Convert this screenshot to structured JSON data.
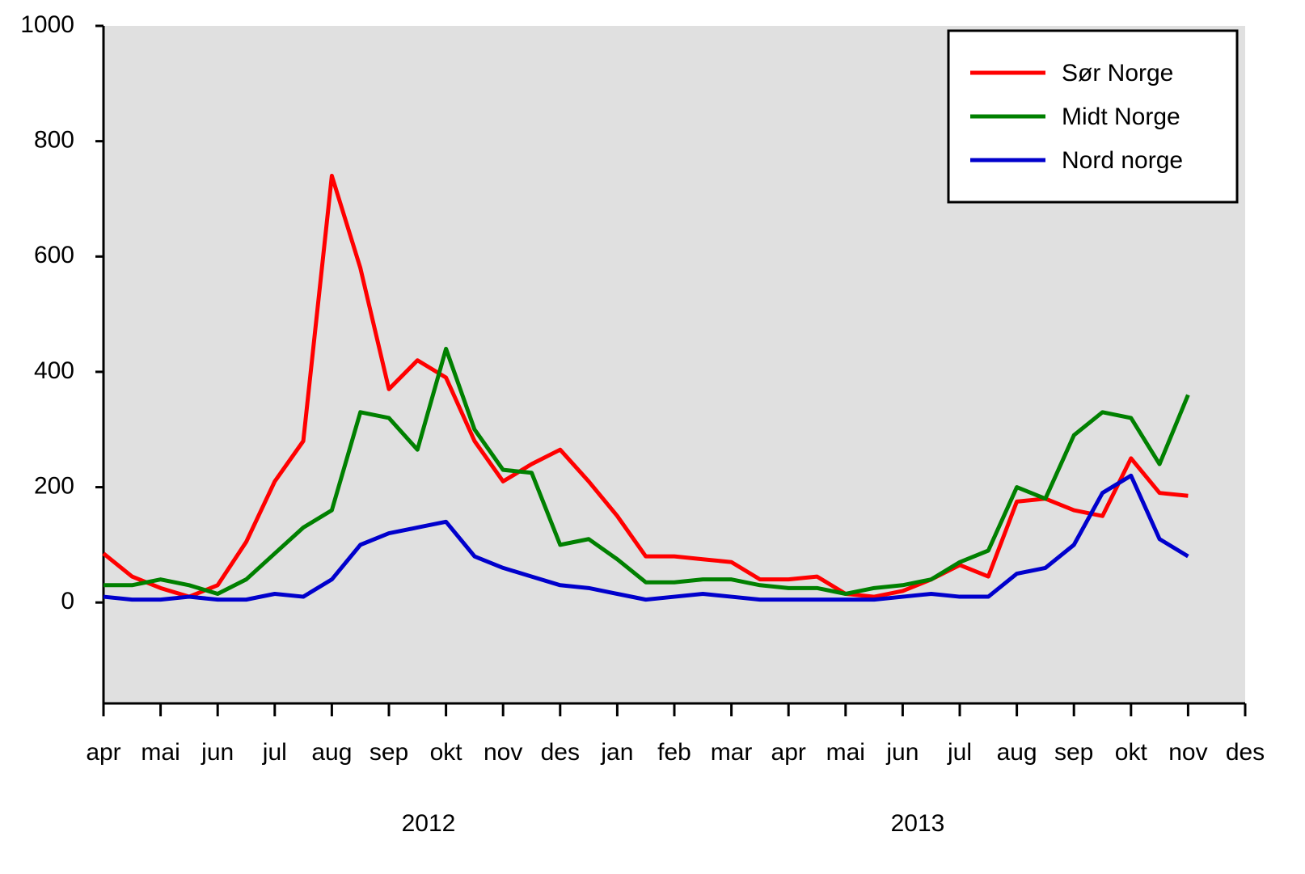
{
  "chart_data": {
    "type": "line",
    "categories": [
      "apr",
      null,
      "mai",
      null,
      "jun",
      null,
      "jul",
      null,
      "aug",
      null,
      "sep",
      null,
      "okt",
      null,
      "nov",
      null,
      "des",
      null,
      "jan",
      null,
      "feb",
      null,
      "mar",
      null,
      "apr",
      null,
      "mai",
      null,
      "jun",
      null,
      "jul",
      null,
      "aug",
      null,
      "sep",
      null,
      "okt",
      null,
      "nov",
      null,
      "des"
    ],
    "year_labels": [
      "2012",
      "2013"
    ],
    "series": [
      {
        "name": "Sør Norge",
        "color": "#ff0000",
        "values": [
          85,
          45,
          25,
          10,
          30,
          105,
          210,
          280,
          740,
          580,
          370,
          420,
          390,
          280,
          210,
          240,
          265,
          210,
          150,
          80,
          80,
          75,
          70,
          40,
          40,
          45,
          15,
          10,
          20,
          40,
          65,
          45,
          175,
          180,
          160,
          150,
          250,
          190,
          185,
          null,
          null
        ]
      },
      {
        "name": "Midt Norge",
        "color": "#008000",
        "values": [
          30,
          30,
          40,
          30,
          15,
          40,
          85,
          130,
          160,
          330,
          320,
          265,
          440,
          300,
          230,
          225,
          100,
          110,
          75,
          35,
          35,
          40,
          40,
          30,
          25,
          25,
          15,
          25,
          30,
          40,
          70,
          90,
          200,
          180,
          290,
          330,
          320,
          240,
          360,
          null,
          null
        ]
      },
      {
        "name": "Nord norge",
        "color": "#0000cc",
        "values": [
          10,
          5,
          5,
          10,
          5,
          5,
          15,
          10,
          40,
          100,
          120,
          130,
          140,
          80,
          60,
          45,
          30,
          25,
          15,
          5,
          10,
          15,
          10,
          5,
          5,
          5,
          5,
          5,
          10,
          15,
          10,
          10,
          50,
          60,
          100,
          190,
          220,
          110,
          80,
          null,
          null
        ]
      }
    ],
    "ylim": [
      -175,
      1000
    ],
    "yticks": [
      0,
      200,
      400,
      600,
      800,
      1000
    ],
    "legend": "upper right",
    "grid": false,
    "background": "#e0e0e0"
  }
}
